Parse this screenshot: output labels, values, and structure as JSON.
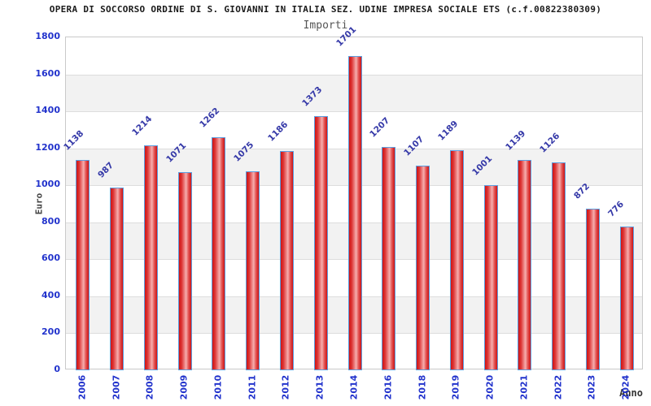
{
  "header": {
    "title": "OPERA DI SOCCORSO ORDINE DI S. GIOVANNI IN ITALIA SEZ. UDINE IMPRESA SOCIALE ETS (c.f.00822380309)",
    "subtitle": "Importi"
  },
  "chart_data": {
    "type": "bar",
    "title": "Importi",
    "xlabel": "Anno",
    "ylabel": "Euro",
    "categories": [
      "2006",
      "2007",
      "2008",
      "2009",
      "2010",
      "2011",
      "2012",
      "2013",
      "2014",
      "2016",
      "2018",
      "2019",
      "2020",
      "2021",
      "2022",
      "2023",
      "2024"
    ],
    "values": [
      1138,
      987,
      1214,
      1071,
      1262,
      1075,
      1186,
      1373,
      1701,
      1207,
      1107,
      1189,
      1001,
      1139,
      1126,
      872,
      776
    ],
    "ylim": [
      0,
      1800
    ],
    "ytick_step": 200,
    "yticks": [
      0,
      200,
      400,
      600,
      800,
      1000,
      1200,
      1400,
      1600,
      1800
    ],
    "grid": true,
    "band_fill": "alternating horizontal bands",
    "legend": "none",
    "colors": {
      "bar_main": "#ce1414",
      "bar_highlight": "#f6adad",
      "bar_border": "#5b9ee0",
      "tick_label": "#2233cc",
      "value_label": "#3539a8",
      "band_gray": "#f2f2f2",
      "gridline": "#dddddd",
      "frame_border": "#c9c9c9",
      "title_text": "#1a1a1a",
      "subtitle_text": "#555555",
      "axis_title_text": "#444444"
    }
  }
}
